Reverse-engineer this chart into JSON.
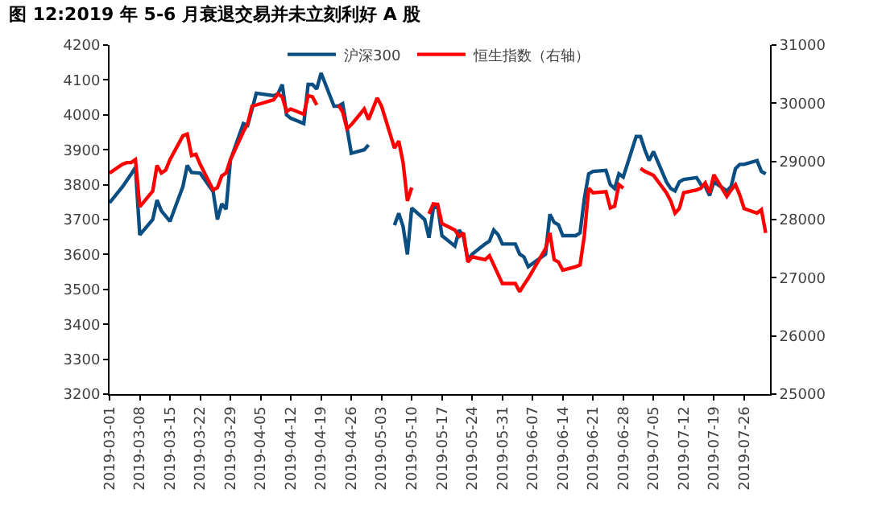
{
  "chart_data": {
    "type": "line",
    "title": "图 12:2019 年 5-6 月衰退交易并未立刻利好 A 股",
    "xlim": [
      "2019-03-01",
      "2019-08-01"
    ],
    "xticks": [
      "2019-03-01",
      "2019-03-08",
      "2019-03-15",
      "2019-03-22",
      "2019-03-29",
      "2019-04-05",
      "2019-04-12",
      "2019-04-19",
      "2019-04-26",
      "2019-05-03",
      "2019-05-10",
      "2019-05-17",
      "2019-05-24",
      "2019-05-31",
      "2019-06-07",
      "2019-06-14",
      "2019-06-21",
      "2019-06-28",
      "2019-07-05",
      "2019-07-12",
      "2019-07-19",
      "2019-07-26"
    ],
    "ylim": [
      3200,
      4200
    ],
    "yticks": [
      3200,
      3300,
      3400,
      3500,
      3600,
      3700,
      3800,
      3900,
      4000,
      4100,
      4200
    ],
    "y2lim": [
      25000,
      31000
    ],
    "y2ticks": [
      25000,
      26000,
      27000,
      28000,
      29000,
      30000,
      31000
    ],
    "legend": "top",
    "marker": "none",
    "line_style": "solid",
    "series": [
      {
        "name": "沪深300",
        "color": "#0b4f82",
        "x": [
          "2019-03-01",
          "2019-03-04",
          "2019-03-06",
          "2019-03-07",
          "2019-03-08",
          "2019-03-11",
          "2019-03-12",
          "2019-03-13",
          "2019-03-15",
          "2019-03-18",
          "2019-03-19",
          "2019-03-20",
          "2019-03-22",
          "2019-03-25",
          "2019-03-26",
          "2019-03-27",
          "2019-03-28",
          "2019-03-29",
          "2019-04-01",
          "2019-04-02",
          "2019-04-03",
          "2019-04-04",
          "2019-04-08",
          "2019-04-09",
          "2019-04-10",
          "2019-04-11",
          "2019-04-12",
          "2019-04-15",
          "2019-04-16",
          "2019-04-17",
          "2019-04-18",
          "2019-04-19",
          "2019-04-22",
          "2019-04-23",
          "2019-04-24",
          "2019-04-25",
          "2019-04-26",
          "2019-04-29",
          "2019-04-30",
          "2019-05-03",
          "2019-05-06",
          "2019-05-07",
          "2019-05-08",
          "2019-05-09",
          "2019-05-10",
          "2019-05-13",
          "2019-05-14",
          "2019-05-15",
          "2019-05-16",
          "2019-05-17",
          "2019-05-20",
          "2019-05-21",
          "2019-05-22",
          "2019-05-23",
          "2019-05-24",
          "2019-05-27",
          "2019-05-28",
          "2019-05-29",
          "2019-05-30",
          "2019-05-31",
          "2019-06-03",
          "2019-06-04",
          "2019-06-05",
          "2019-06-06",
          "2019-06-10",
          "2019-06-11",
          "2019-06-12",
          "2019-06-13",
          "2019-06-14",
          "2019-06-17",
          "2019-06-18",
          "2019-06-19",
          "2019-06-20",
          "2019-06-21",
          "2019-06-24",
          "2019-06-25",
          "2019-06-26",
          "2019-06-27",
          "2019-06-28",
          "2019-07-01",
          "2019-07-02",
          "2019-07-03",
          "2019-07-04",
          "2019-07-05",
          "2019-07-08",
          "2019-07-09",
          "2019-07-10",
          "2019-07-11",
          "2019-07-12",
          "2019-07-15",
          "2019-07-16",
          "2019-07-17",
          "2019-07-18",
          "2019-07-19",
          "2019-07-22",
          "2019-07-23",
          "2019-07-24",
          "2019-07-25",
          "2019-07-26",
          "2019-07-29",
          "2019-07-30",
          "2019-07-31"
        ],
        "values": [
          3748,
          3794,
          3830,
          3850,
          3656,
          3700,
          3756,
          3725,
          3695,
          3795,
          3855,
          3835,
          3833,
          3780,
          3700,
          3745,
          3730,
          3870,
          3975,
          3970,
          4015,
          4062,
          4055,
          4060,
          4087,
          4000,
          3990,
          3975,
          4087,
          4087,
          4074,
          4120,
          4025,
          4025,
          4032,
          3963,
          3890,
          3900,
          3914,
          null,
          3684,
          3718,
          3680,
          3600,
          3733,
          3700,
          3648,
          3733,
          3740,
          3654,
          3624,
          3670,
          3650,
          3585,
          3601,
          3630,
          3638,
          3670,
          3657,
          3630,
          3630,
          3601,
          3593,
          3565,
          3601,
          3715,
          3692,
          3685,
          3654,
          3654,
          3662,
          3761,
          3831,
          3838,
          3841,
          3800,
          3789,
          3831,
          3822,
          3938,
          3938,
          3900,
          3869,
          3895,
          3808,
          3789,
          3782,
          3808,
          3815,
          3820,
          3800,
          3795,
          3769,
          3808,
          3782,
          3795,
          3846,
          3858,
          3858,
          3869,
          3838,
          3831
        ]
      },
      {
        "name": "恒生指数（右轴）",
        "color": "#ff0000",
        "axis": "y2",
        "x": [
          "2019-03-01",
          "2019-03-04",
          "2019-03-05",
          "2019-03-06",
          "2019-03-07",
          "2019-03-08",
          "2019-03-11",
          "2019-03-12",
          "2019-03-13",
          "2019-03-14",
          "2019-03-15",
          "2019-03-18",
          "2019-03-19",
          "2019-03-20",
          "2019-03-21",
          "2019-03-22",
          "2019-03-25",
          "2019-03-26",
          "2019-03-27",
          "2019-03-28",
          "2019-03-29",
          "2019-04-01",
          "2019-04-02",
          "2019-04-03",
          "2019-04-04",
          "2019-04-08",
          "2019-04-09",
          "2019-04-10",
          "2019-04-11",
          "2019-04-12",
          "2019-04-15",
          "2019-04-16",
          "2019-04-17",
          "2019-04-18",
          "2019-04-19",
          "2019-04-23",
          "2019-04-24",
          "2019-04-25",
          "2019-04-26",
          "2019-04-29",
          "2019-04-30",
          "2019-05-02",
          "2019-05-03",
          "2019-05-06",
          "2019-05-07",
          "2019-05-08",
          "2019-05-09",
          "2019-05-10",
          "2019-05-13",
          "2019-05-14",
          "2019-05-15",
          "2019-05-16",
          "2019-05-17",
          "2019-05-20",
          "2019-05-21",
          "2019-05-22",
          "2019-05-23",
          "2019-05-24",
          "2019-05-27",
          "2019-05-28",
          "2019-05-29",
          "2019-05-31",
          "2019-06-03",
          "2019-06-04",
          "2019-06-05",
          "2019-06-06",
          "2019-06-10",
          "2019-06-11",
          "2019-06-12",
          "2019-06-13",
          "2019-06-14",
          "2019-06-17",
          "2019-06-18",
          "2019-06-19",
          "2019-06-20",
          "2019-06-21",
          "2019-06-24",
          "2019-06-25",
          "2019-06-26",
          "2019-06-27",
          "2019-06-28",
          "2019-07-01",
          "2019-07-02",
          "2019-07-03",
          "2019-07-05",
          "2019-07-08",
          "2019-07-09",
          "2019-07-10",
          "2019-07-11",
          "2019-07-12",
          "2019-07-15",
          "2019-07-16",
          "2019-07-17",
          "2019-07-18",
          "2019-07-19",
          "2019-07-22",
          "2019-07-23",
          "2019-07-24",
          "2019-07-25",
          "2019-07-26",
          "2019-07-29",
          "2019-07-30",
          "2019-07-31"
        ],
        "values": [
          28800,
          28950,
          28980,
          28980,
          29030,
          28220,
          28490,
          28930,
          28800,
          28850,
          29030,
          29440,
          29470,
          29100,
          29120,
          28950,
          28510,
          28550,
          28750,
          28800,
          29030,
          29510,
          29650,
          29950,
          29970,
          30060,
          30160,
          30110,
          29860,
          29900,
          29810,
          30130,
          30110,
          29970,
          null,
          29970,
          29850,
          29560,
          29630,
          29900,
          29720,
          30090,
          29950,
          29230,
          29350,
          28980,
          28320,
          28550,
          null,
          28100,
          28270,
          28260,
          27930,
          27820,
          27710,
          27770,
          27270,
          27360,
          27310,
          27380,
          27220,
          26900,
          26900,
          26760,
          26880,
          26990,
          27500,
          27770,
          27310,
          27270,
          27130,
          27190,
          27220,
          27730,
          28540,
          28460,
          28480,
          28200,
          28230,
          28600,
          28540,
          null,
          28880,
          28830,
          28760,
          28460,
          28320,
          28110,
          28190,
          28460,
          28510,
          28540,
          28630,
          28460,
          28770,
          28400,
          28510,
          28600,
          28420,
          28190,
          28110,
          28170,
          27770
        ]
      }
    ]
  }
}
